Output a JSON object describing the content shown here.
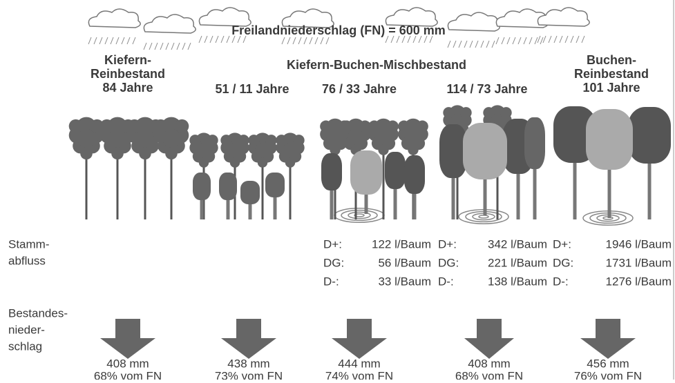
{
  "title": "Freilandniederschlag (FN) = 600 mm",
  "group_label": "Kiefern-Buchen-Mischbestand",
  "stands": [
    {
      "label": [
        "Kiefern-",
        "Reinbestand"
      ],
      "age": "84 Jahre",
      "throughfall": "408 mm",
      "share": "68% vom FN"
    },
    {
      "age": "51 / 11 Jahre",
      "throughfall": "438 mm",
      "share": "73% vom FN"
    },
    {
      "age": "76 / 33 Jahre",
      "throughfall": "444 mm",
      "share": "74% vom FN",
      "stemflow": [
        [
          "D+:",
          "122 l/Baum"
        ],
        [
          "DG:",
          "56 l/Baum"
        ],
        [
          "D-:",
          "33 l/Baum"
        ]
      ]
    },
    {
      "age": "114 / 73 Jahre",
      "throughfall": "408 mm",
      "share": "68% vom FN",
      "stemflow": [
        [
          "D+:",
          "342 l/Baum"
        ],
        [
          "DG:",
          "221 l/Baum"
        ],
        [
          "D-:",
          "138 l/Baum"
        ]
      ]
    },
    {
      "label": [
        "Buchen-",
        "Reinbestand"
      ],
      "age": "101 Jahre",
      "throughfall": "456 mm",
      "share": "76% vom FN",
      "stemflow": [
        [
          "D+:",
          "1946 l/Baum"
        ],
        [
          "DG:",
          "1731 l/Baum"
        ],
        [
          "D-:",
          "1276 l/Baum"
        ]
      ]
    }
  ],
  "row_labels": {
    "stemflow": [
      "Stamm-",
      "abfluss"
    ],
    "throughfall": [
      "Bestandes-",
      "nieder-",
      "schlag"
    ]
  }
}
